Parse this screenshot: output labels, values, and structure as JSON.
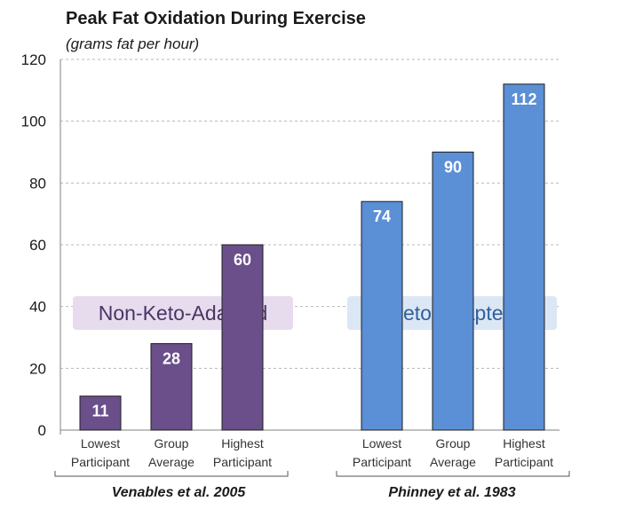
{
  "chart_data": {
    "type": "bar",
    "title": "Peak Fat Oxidation During Exercise",
    "subtitle": "(grams fat per hour)",
    "ylim": [
      0,
      120
    ],
    "yticks": [
      0,
      20,
      40,
      60,
      80,
      100,
      120
    ],
    "grid": true,
    "groups": [
      {
        "label": "Venables et al. 2005",
        "annotation": "Non-Keto-Adapted",
        "color": "#6a4f8a",
        "annotation_bg": "#e6dcee",
        "annotation_color": "#4b3563",
        "categories": [
          [
            "Lowest",
            "Participant"
          ],
          [
            "Group",
            "Average"
          ],
          [
            "Highest",
            "Participant"
          ]
        ],
        "values": [
          11,
          28,
          60
        ]
      },
      {
        "label": "Phinney et al. 1983",
        "annotation": "Keto-Adapted",
        "color": "#5b8fd6",
        "annotation_bg": "#dbe7f4",
        "annotation_color": "#2f5f9e",
        "categories": [
          [
            "Lowest",
            "Participant"
          ],
          [
            "Group",
            "Average"
          ],
          [
            "Highest",
            "Participant"
          ]
        ],
        "values": [
          74,
          90,
          112
        ]
      }
    ]
  }
}
